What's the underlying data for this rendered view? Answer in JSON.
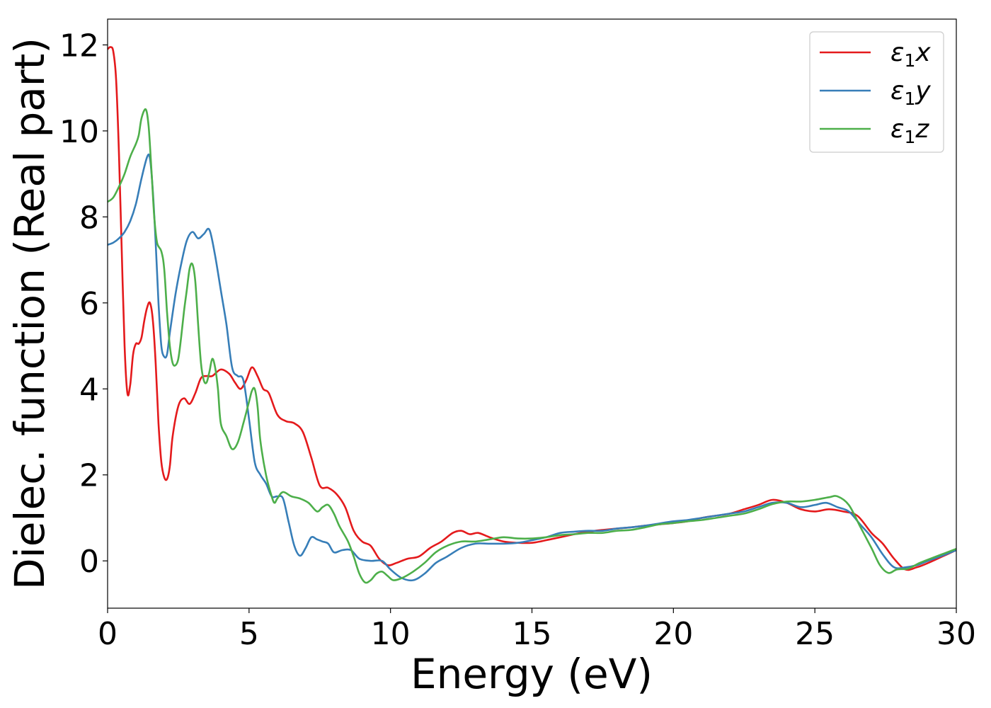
{
  "chart_data": {
    "type": "line",
    "title": "",
    "xlabel": "Energy (eV)",
    "ylabel": "Dielec. function (Real part)",
    "xlim": [
      0,
      30
    ],
    "ylim": [
      -1.1,
      12.6
    ],
    "xticks": [
      0,
      5,
      10,
      15,
      20,
      25,
      30
    ],
    "yticks": [
      0,
      2,
      4,
      6,
      8,
      10,
      12
    ],
    "grid": false,
    "legend_position": "top-right",
    "series": [
      {
        "name": "ε₁x",
        "sym": "ε",
        "sub": "1",
        "var": "x",
        "color": "#e41a1c",
        "points": [
          [
            0,
            11.9
          ],
          [
            0.1,
            11.95
          ],
          [
            0.2,
            11.85
          ],
          [
            0.3,
            11.2
          ],
          [
            0.4,
            9.5
          ],
          [
            0.5,
            7.2
          ],
          [
            0.6,
            5.0
          ],
          [
            0.7,
            3.9
          ],
          [
            0.8,
            4.1
          ],
          [
            0.9,
            4.8
          ],
          [
            1.0,
            5.05
          ],
          [
            1.1,
            5.05
          ],
          [
            1.2,
            5.2
          ],
          [
            1.3,
            5.6
          ],
          [
            1.4,
            5.9
          ],
          [
            1.5,
            6.0
          ],
          [
            1.6,
            5.6
          ],
          [
            1.7,
            4.6
          ],
          [
            1.8,
            3.2
          ],
          [
            1.9,
            2.3
          ],
          [
            2.0,
            1.95
          ],
          [
            2.1,
            1.9
          ],
          [
            2.2,
            2.2
          ],
          [
            2.3,
            2.9
          ],
          [
            2.5,
            3.6
          ],
          [
            2.7,
            3.78
          ],
          [
            2.9,
            3.65
          ],
          [
            3.1,
            3.9
          ],
          [
            3.3,
            4.25
          ],
          [
            3.5,
            4.3
          ],
          [
            3.7,
            4.3
          ],
          [
            4.0,
            4.45
          ],
          [
            4.3,
            4.35
          ],
          [
            4.5,
            4.15
          ],
          [
            4.7,
            4.0
          ],
          [
            4.9,
            4.2
          ],
          [
            5.1,
            4.5
          ],
          [
            5.3,
            4.3
          ],
          [
            5.5,
            4.0
          ],
          [
            5.7,
            3.9
          ],
          [
            6.0,
            3.4
          ],
          [
            6.3,
            3.25
          ],
          [
            6.6,
            3.2
          ],
          [
            6.9,
            3.0
          ],
          [
            7.2,
            2.4
          ],
          [
            7.5,
            1.75
          ],
          [
            7.8,
            1.7
          ],
          [
            8.1,
            1.55
          ],
          [
            8.4,
            1.25
          ],
          [
            8.7,
            0.7
          ],
          [
            9.0,
            0.45
          ],
          [
            9.3,
            0.35
          ],
          [
            9.6,
            0.05
          ],
          [
            9.9,
            -0.1
          ],
          [
            10.2,
            -0.05
          ],
          [
            10.6,
            0.05
          ],
          [
            11.0,
            0.1
          ],
          [
            11.4,
            0.3
          ],
          [
            11.8,
            0.45
          ],
          [
            12.2,
            0.65
          ],
          [
            12.5,
            0.7
          ],
          [
            12.8,
            0.62
          ],
          [
            13.1,
            0.65
          ],
          [
            13.5,
            0.55
          ],
          [
            14.0,
            0.45
          ],
          [
            14.5,
            0.42
          ],
          [
            15.0,
            0.42
          ],
          [
            15.5,
            0.48
          ],
          [
            16.0,
            0.55
          ],
          [
            16.5,
            0.62
          ],
          [
            17.0,
            0.68
          ],
          [
            17.5,
            0.72
          ],
          [
            18.0,
            0.75
          ],
          [
            18.5,
            0.78
          ],
          [
            19.0,
            0.82
          ],
          [
            19.5,
            0.85
          ],
          [
            20.0,
            0.88
          ],
          [
            20.5,
            0.92
          ],
          [
            21.0,
            1.0
          ],
          [
            21.5,
            1.05
          ],
          [
            22.0,
            1.1
          ],
          [
            22.5,
            1.2
          ],
          [
            23.0,
            1.3
          ],
          [
            23.5,
            1.42
          ],
          [
            24.0,
            1.35
          ],
          [
            24.5,
            1.2
          ],
          [
            25.0,
            1.15
          ],
          [
            25.5,
            1.2
          ],
          [
            26.0,
            1.15
          ],
          [
            26.5,
            1.05
          ],
          [
            27.0,
            0.65
          ],
          [
            27.4,
            0.4
          ],
          [
            27.8,
            0.05
          ],
          [
            28.2,
            -0.2
          ],
          [
            28.6,
            -0.15
          ],
          [
            29.0,
            -0.05
          ],
          [
            29.5,
            0.1
          ],
          [
            30.0,
            0.25
          ]
        ]
      },
      {
        "name": "ε₁y",
        "sym": "ε",
        "sub": "1",
        "var": "y",
        "color": "#377eb8",
        "points": [
          [
            0,
            7.35
          ],
          [
            0.2,
            7.4
          ],
          [
            0.4,
            7.5
          ],
          [
            0.6,
            7.65
          ],
          [
            0.8,
            7.9
          ],
          [
            1.0,
            8.3
          ],
          [
            1.2,
            8.9
          ],
          [
            1.4,
            9.4
          ],
          [
            1.5,
            9.35
          ],
          [
            1.6,
            8.6
          ],
          [
            1.7,
            7.4
          ],
          [
            1.8,
            6.0
          ],
          [
            1.9,
            5.0
          ],
          [
            2.0,
            4.75
          ],
          [
            2.1,
            4.8
          ],
          [
            2.2,
            5.3
          ],
          [
            2.4,
            6.2
          ],
          [
            2.6,
            6.9
          ],
          [
            2.8,
            7.45
          ],
          [
            3.0,
            7.65
          ],
          [
            3.2,
            7.5
          ],
          [
            3.4,
            7.6
          ],
          [
            3.6,
            7.7
          ],
          [
            3.8,
            7.1
          ],
          [
            4.0,
            6.3
          ],
          [
            4.2,
            5.5
          ],
          [
            4.4,
            4.5
          ],
          [
            4.6,
            4.3
          ],
          [
            4.8,
            4.2
          ],
          [
            5.0,
            3.3
          ],
          [
            5.2,
            2.3
          ],
          [
            5.4,
            2.0
          ],
          [
            5.6,
            1.8
          ],
          [
            5.8,
            1.5
          ],
          [
            6.0,
            1.5
          ],
          [
            6.2,
            1.45
          ],
          [
            6.4,
            0.9
          ],
          [
            6.6,
            0.35
          ],
          [
            6.8,
            0.12
          ],
          [
            7.0,
            0.3
          ],
          [
            7.2,
            0.55
          ],
          [
            7.4,
            0.5
          ],
          [
            7.6,
            0.45
          ],
          [
            7.8,
            0.4
          ],
          [
            8.0,
            0.2
          ],
          [
            8.3,
            0.25
          ],
          [
            8.6,
            0.25
          ],
          [
            8.9,
            0.05
          ],
          [
            9.3,
            0.0
          ],
          [
            9.7,
            0.0
          ],
          [
            10.0,
            -0.2
          ],
          [
            10.4,
            -0.4
          ],
          [
            10.8,
            -0.45
          ],
          [
            11.2,
            -0.3
          ],
          [
            11.6,
            -0.05
          ],
          [
            12.0,
            0.1
          ],
          [
            12.5,
            0.3
          ],
          [
            13.0,
            0.4
          ],
          [
            13.5,
            0.4
          ],
          [
            14.0,
            0.4
          ],
          [
            14.5,
            0.42
          ],
          [
            15.0,
            0.48
          ],
          [
            15.5,
            0.55
          ],
          [
            16.0,
            0.65
          ],
          [
            16.5,
            0.68
          ],
          [
            17.0,
            0.7
          ],
          [
            17.5,
            0.7
          ],
          [
            18.0,
            0.75
          ],
          [
            18.5,
            0.78
          ],
          [
            19.0,
            0.82
          ],
          [
            19.5,
            0.87
          ],
          [
            20.0,
            0.92
          ],
          [
            20.5,
            0.95
          ],
          [
            21.0,
            1.0
          ],
          [
            21.5,
            1.05
          ],
          [
            22.0,
            1.1
          ],
          [
            22.5,
            1.15
          ],
          [
            23.0,
            1.25
          ],
          [
            23.5,
            1.35
          ],
          [
            24.0,
            1.35
          ],
          [
            24.5,
            1.25
          ],
          [
            25.0,
            1.3
          ],
          [
            25.4,
            1.35
          ],
          [
            25.8,
            1.25
          ],
          [
            26.2,
            1.15
          ],
          [
            26.6,
            0.85
          ],
          [
            27.0,
            0.55
          ],
          [
            27.4,
            0.15
          ],
          [
            27.8,
            -0.15
          ],
          [
            28.2,
            -0.15
          ],
          [
            28.6,
            -0.1
          ],
          [
            29.0,
            0.0
          ],
          [
            29.5,
            0.12
          ],
          [
            30.0,
            0.25
          ]
        ]
      },
      {
        "name": "ε₁z",
        "sym": "ε",
        "sub": "1",
        "var": "z",
        "color": "#4daf4a",
        "points": [
          [
            0,
            8.35
          ],
          [
            0.2,
            8.45
          ],
          [
            0.4,
            8.7
          ],
          [
            0.6,
            9.0
          ],
          [
            0.8,
            9.4
          ],
          [
            1.0,
            9.7
          ],
          [
            1.1,
            9.9
          ],
          [
            1.2,
            10.3
          ],
          [
            1.35,
            10.5
          ],
          [
            1.45,
            10.1
          ],
          [
            1.55,
            9.1
          ],
          [
            1.65,
            8.0
          ],
          [
            1.75,
            7.4
          ],
          [
            1.9,
            7.2
          ],
          [
            2.0,
            6.8
          ],
          [
            2.1,
            5.8
          ],
          [
            2.2,
            5.0
          ],
          [
            2.3,
            4.6
          ],
          [
            2.4,
            4.55
          ],
          [
            2.5,
            4.7
          ],
          [
            2.6,
            5.2
          ],
          [
            2.7,
            5.8
          ],
          [
            2.8,
            6.3
          ],
          [
            2.9,
            6.8
          ],
          [
            3.0,
            6.9
          ],
          [
            3.1,
            6.5
          ],
          [
            3.2,
            5.5
          ],
          [
            3.3,
            4.6
          ],
          [
            3.4,
            4.2
          ],
          [
            3.5,
            4.15
          ],
          [
            3.6,
            4.4
          ],
          [
            3.7,
            4.7
          ],
          [
            3.8,
            4.5
          ],
          [
            3.9,
            4.0
          ],
          [
            4.0,
            3.2
          ],
          [
            4.2,
            2.9
          ],
          [
            4.4,
            2.6
          ],
          [
            4.6,
            2.75
          ],
          [
            4.8,
            3.2
          ],
          [
            5.0,
            3.7
          ],
          [
            5.1,
            3.95
          ],
          [
            5.2,
            4.0
          ],
          [
            5.3,
            3.6
          ],
          [
            5.4,
            2.8
          ],
          [
            5.6,
            2.0
          ],
          [
            5.8,
            1.5
          ],
          [
            5.9,
            1.35
          ],
          [
            6.0,
            1.45
          ],
          [
            6.2,
            1.6
          ],
          [
            6.5,
            1.5
          ],
          [
            6.8,
            1.45
          ],
          [
            7.1,
            1.35
          ],
          [
            7.4,
            1.15
          ],
          [
            7.6,
            1.25
          ],
          [
            7.8,
            1.3
          ],
          [
            8.0,
            1.1
          ],
          [
            8.2,
            0.8
          ],
          [
            8.5,
            0.45
          ],
          [
            8.7,
            0.1
          ],
          [
            8.9,
            -0.3
          ],
          [
            9.1,
            -0.5
          ],
          [
            9.3,
            -0.45
          ],
          [
            9.5,
            -0.3
          ],
          [
            9.7,
            -0.25
          ],
          [
            9.9,
            -0.35
          ],
          [
            10.1,
            -0.45
          ],
          [
            10.4,
            -0.4
          ],
          [
            10.8,
            -0.25
          ],
          [
            11.2,
            -0.05
          ],
          [
            11.6,
            0.2
          ],
          [
            12.0,
            0.35
          ],
          [
            12.5,
            0.45
          ],
          [
            13.0,
            0.45
          ],
          [
            13.5,
            0.5
          ],
          [
            14.0,
            0.55
          ],
          [
            14.5,
            0.52
          ],
          [
            15.0,
            0.52
          ],
          [
            15.5,
            0.55
          ],
          [
            16.0,
            0.6
          ],
          [
            16.5,
            0.62
          ],
          [
            17.0,
            0.65
          ],
          [
            17.5,
            0.65
          ],
          [
            18.0,
            0.7
          ],
          [
            18.5,
            0.72
          ],
          [
            19.0,
            0.78
          ],
          [
            19.5,
            0.85
          ],
          [
            20.0,
            0.88
          ],
          [
            20.5,
            0.92
          ],
          [
            21.0,
            0.95
          ],
          [
            21.5,
            1.0
          ],
          [
            22.0,
            1.05
          ],
          [
            22.5,
            1.1
          ],
          [
            23.0,
            1.2
          ],
          [
            23.5,
            1.32
          ],
          [
            24.0,
            1.38
          ],
          [
            24.5,
            1.38
          ],
          [
            25.0,
            1.42
          ],
          [
            25.5,
            1.48
          ],
          [
            25.8,
            1.5
          ],
          [
            26.2,
            1.3
          ],
          [
            26.6,
            0.8
          ],
          [
            27.0,
            0.3
          ],
          [
            27.3,
            -0.1
          ],
          [
            27.6,
            -0.28
          ],
          [
            27.9,
            -0.2
          ],
          [
            28.3,
            -0.18
          ],
          [
            28.7,
            -0.05
          ],
          [
            29.2,
            0.08
          ],
          [
            29.6,
            0.18
          ],
          [
            30.0,
            0.28
          ]
        ]
      }
    ]
  }
}
